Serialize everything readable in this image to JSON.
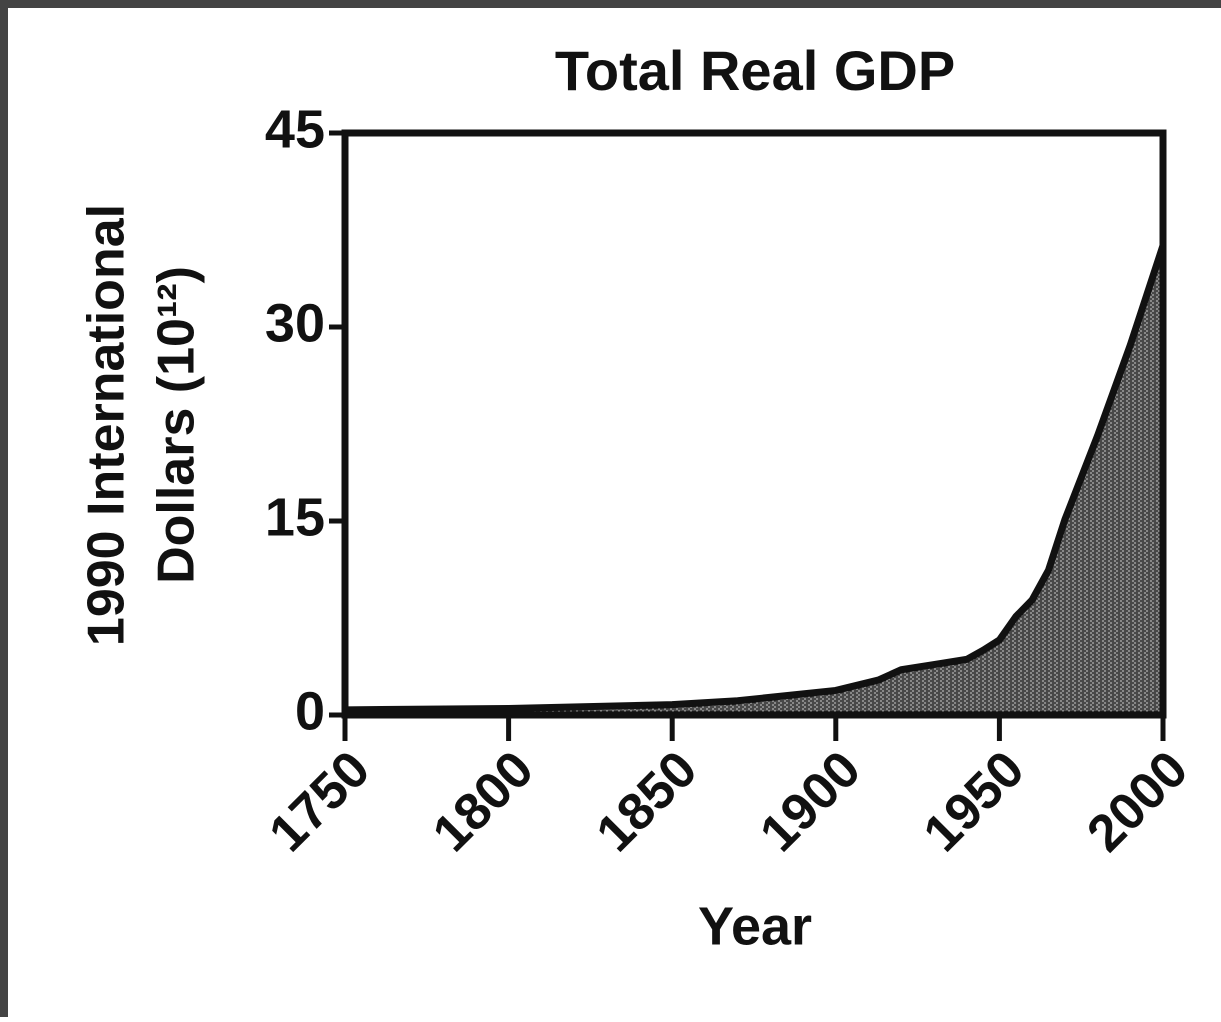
{
  "chart_data": {
    "type": "area",
    "title": "Total Real GDP",
    "xlabel": "Year",
    "ylabel": [
      "1990 International",
      "Dollars (10¹²)"
    ],
    "x": [
      1750,
      1800,
      1850,
      1870,
      1900,
      1913,
      1920,
      1930,
      1940,
      1945,
      1950,
      1955,
      1960,
      1965,
      1970,
      1980,
      1990,
      2000
    ],
    "series": [
      {
        "name": "Total Real GDP",
        "color": "#111111",
        "values": [
          0.4,
          0.5,
          0.8,
          1.1,
          1.9,
          2.7,
          3.5,
          3.9,
          4.3,
          5.0,
          5.8,
          7.6,
          8.9,
          11.2,
          15.1,
          21.6,
          28.6,
          36.3
        ]
      }
    ],
    "xlim": [
      1750,
      2000
    ],
    "xticks": [
      1750,
      1800,
      1850,
      1900,
      1950,
      2000
    ],
    "ylim": [
      0,
      45
    ],
    "yticks": [
      0,
      15,
      30,
      45
    ]
  }
}
